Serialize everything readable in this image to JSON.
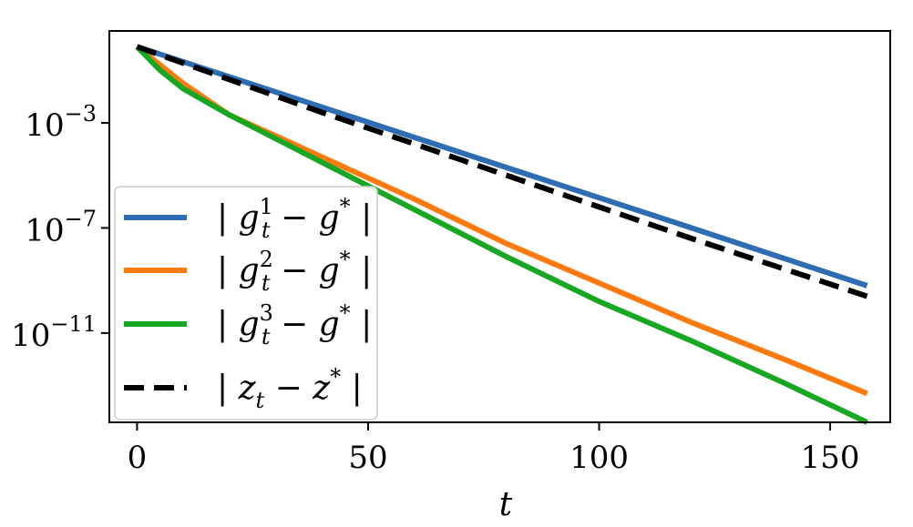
{
  "chart_data": {
    "type": "line",
    "title": "",
    "xlabel": "t",
    "ylabel": "",
    "yscale": "log",
    "xlim": [
      -6,
      163
    ],
    "ylim_exp": [
      -14.4,
      0.5
    ],
    "x_ticks": [
      0,
      50,
      100,
      150
    ],
    "x_tick_labels": [
      "0",
      "50",
      "100",
      "150"
    ],
    "y_ticks_exp": [
      -3,
      -7,
      -11
    ],
    "y_tick_labels": [
      {
        "base": "10",
        "exp": "−3"
      },
      {
        "base": "10",
        "exp": "−7"
      },
      {
        "base": "10",
        "exp": "−11"
      }
    ],
    "legend_position": "center-left",
    "series": [
      {
        "name": "|g_t^1 − g^*|",
        "legend": {
          "open": "|",
          "var": "g",
          "sup": "1",
          "sub": "t",
          "middle": " − ",
          "var2": "g",
          "sup2": "*",
          "close": "|"
        },
        "color": "#2e6db4",
        "style": "solid",
        "points": [
          [
            0,
            -0.1
          ],
          [
            40,
            -2.4
          ],
          [
            80,
            -4.7
          ],
          [
            120,
            -7.0
          ],
          [
            158,
            -9.2
          ]
        ]
      },
      {
        "name": "|g_t^2 − g^*|",
        "legend": {
          "open": "|",
          "var": "g",
          "sup": "2",
          "sub": "t",
          "middle": " − ",
          "var2": "g",
          "sup2": "*",
          "close": "|"
        },
        "color": "#ff7a0e",
        "style": "solid",
        "points": [
          [
            0,
            -0.1
          ],
          [
            5,
            -0.8
          ],
          [
            10,
            -1.5
          ],
          [
            20,
            -2.7
          ],
          [
            30,
            -3.5
          ],
          [
            40,
            -4.3
          ],
          [
            60,
            -5.9
          ],
          [
            80,
            -7.6
          ],
          [
            100,
            -9.1
          ],
          [
            120,
            -10.6
          ],
          [
            140,
            -12.0
          ],
          [
            158,
            -13.3
          ]
        ]
      },
      {
        "name": "|g_t^3 − g^*|",
        "legend": {
          "open": "|",
          "var": "g",
          "sup": "3",
          "sub": "t",
          "middle": " − ",
          "var2": "g",
          "sup2": "*",
          "close": "|"
        },
        "color": "#17a722",
        "style": "solid",
        "points": [
          [
            0,
            -0.1
          ],
          [
            5,
            -1.0
          ],
          [
            10,
            -1.7
          ],
          [
            20,
            -2.7
          ],
          [
            30,
            -3.6
          ],
          [
            40,
            -4.5
          ],
          [
            50,
            -5.4
          ],
          [
            60,
            -6.3
          ],
          [
            80,
            -8.1
          ],
          [
            100,
            -9.8
          ],
          [
            120,
            -11.3
          ],
          [
            140,
            -12.9
          ],
          [
            158,
            -14.4
          ]
        ]
      },
      {
        "name": "|z_t − z^*|",
        "legend": {
          "open": "|",
          "var": "z",
          "sup": "",
          "sub": "t",
          "middle": " − ",
          "var2": "z",
          "sup2": "*",
          "close": "|"
        },
        "color": "#000000",
        "style": "dashed",
        "points": [
          [
            0,
            -0.1
          ],
          [
            40,
            -2.6
          ],
          [
            80,
            -5.0
          ],
          [
            120,
            -7.4
          ],
          [
            158,
            -9.6
          ]
        ]
      }
    ]
  }
}
